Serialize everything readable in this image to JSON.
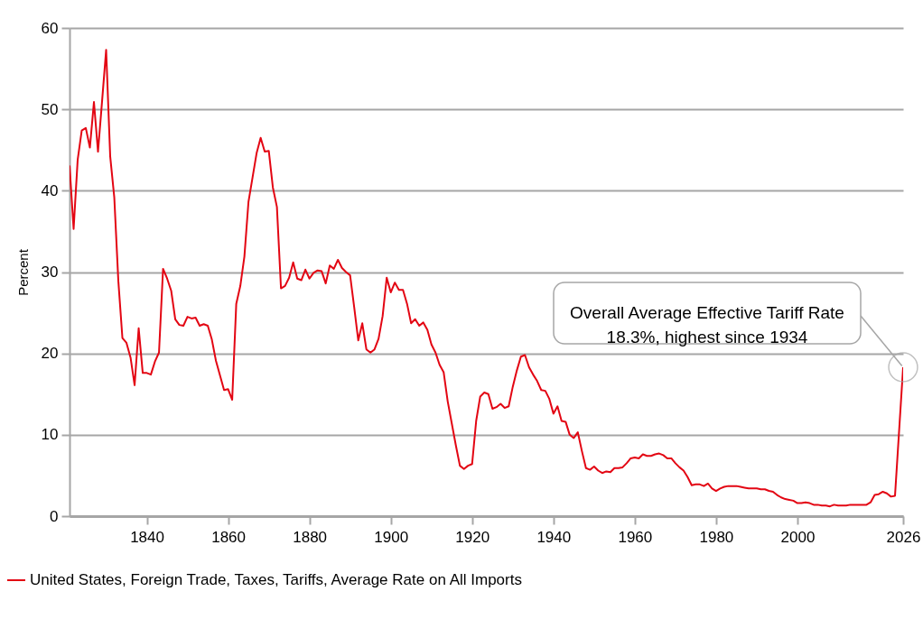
{
  "chart_data": {
    "type": "line",
    "ylabel": "Percent",
    "x": [
      1821,
      1822,
      1823,
      1824,
      1825,
      1826,
      1827,
      1828,
      1829,
      1830,
      1831,
      1832,
      1833,
      1834,
      1835,
      1836,
      1837,
      1838,
      1839,
      1840,
      1841,
      1842,
      1843,
      1844,
      1845,
      1846,
      1847,
      1848,
      1849,
      1850,
      1851,
      1852,
      1853,
      1854,
      1855,
      1856,
      1857,
      1858,
      1859,
      1860,
      1861,
      1862,
      1863,
      1864,
      1865,
      1866,
      1867,
      1868,
      1869,
      1870,
      1871,
      1872,
      1873,
      1874,
      1875,
      1876,
      1877,
      1878,
      1879,
      1880,
      1881,
      1882,
      1883,
      1884,
      1885,
      1886,
      1887,
      1888,
      1889,
      1890,
      1891,
      1892,
      1893,
      1894,
      1895,
      1896,
      1897,
      1898,
      1899,
      1900,
      1901,
      1902,
      1903,
      1904,
      1905,
      1906,
      1907,
      1908,
      1909,
      1910,
      1911,
      1912,
      1913,
      1914,
      1915,
      1916,
      1917,
      1918,
      1919,
      1920,
      1921,
      1922,
      1923,
      1924,
      1925,
      1926,
      1927,
      1928,
      1929,
      1930,
      1931,
      1932,
      1933,
      1934,
      1935,
      1936,
      1937,
      1938,
      1939,
      1940,
      1941,
      1942,
      1943,
      1944,
      1945,
      1946,
      1947,
      1948,
      1949,
      1950,
      1951,
      1952,
      1953,
      1954,
      1955,
      1956,
      1957,
      1958,
      1959,
      1960,
      1961,
      1962,
      1963,
      1964,
      1965,
      1966,
      1967,
      1968,
      1969,
      1970,
      1971,
      1972,
      1973,
      1974,
      1975,
      1976,
      1977,
      1978,
      1979,
      1980,
      1981,
      1982,
      1983,
      1984,
      1985,
      1986,
      1987,
      1988,
      1989,
      1990,
      1991,
      1992,
      1993,
      1994,
      1995,
      1996,
      1997,
      1998,
      1999,
      2000,
      2001,
      2002,
      2003,
      2004,
      2005,
      2006,
      2007,
      2008,
      2009,
      2010,
      2011,
      2012,
      2013,
      2014,
      2015,
      2016,
      2017,
      2018,
      2019,
      2020,
      2021,
      2022,
      2023,
      2024,
      2026
    ],
    "series": [
      {
        "name": "United States, Foreign Trade, Taxes, Tariffs, Average Rate on All Imports",
        "color": "#e30613",
        "values": [
          43.1,
          35.3,
          43.8,
          47.4,
          47.7,
          45.3,
          50.9,
          44.8,
          51.0,
          57.3,
          44.2,
          39.2,
          28.9,
          21.9,
          21.3,
          19.5,
          16.1,
          23.1,
          17.6,
          17.6,
          17.4,
          19.0,
          20.1,
          30.4,
          29.2,
          27.7,
          24.2,
          23.5,
          23.4,
          24.5,
          24.3,
          24.4,
          23.4,
          23.6,
          23.4,
          21.7,
          19.1,
          17.3,
          15.5,
          15.6,
          14.3,
          26.1,
          28.3,
          31.9,
          38.6,
          41.6,
          44.6,
          46.5,
          44.8,
          44.9,
          40.4,
          38.0,
          28.0,
          28.3,
          29.3,
          31.2,
          29.2,
          29.0,
          30.3,
          29.2,
          29.9,
          30.2,
          30.1,
          28.6,
          30.8,
          30.4,
          31.5,
          30.5,
          30.0,
          29.6,
          25.7,
          21.6,
          23.7,
          20.5,
          20.1,
          20.5,
          21.8,
          24.6,
          29.3,
          27.5,
          28.7,
          27.8,
          27.8,
          26.1,
          23.7,
          24.2,
          23.4,
          23.8,
          22.9,
          21.1,
          20.1,
          18.6,
          17.7,
          14.1,
          11.4,
          8.7,
          6.2,
          5.8,
          6.2,
          6.4,
          11.7,
          14.7,
          15.2,
          15.0,
          13.2,
          13.4,
          13.8,
          13.3,
          13.5,
          15.9,
          17.9,
          19.6,
          19.8,
          18.3,
          17.4,
          16.6,
          15.5,
          15.4,
          14.4,
          12.6,
          13.5,
          11.7,
          11.6,
          10.0,
          9.6,
          10.3,
          8.0,
          5.9,
          5.7,
          6.1,
          5.6,
          5.3,
          5.5,
          5.4,
          5.9,
          5.9,
          6.0,
          6.5,
          7.1,
          7.2,
          7.1,
          7.6,
          7.4,
          7.4,
          7.6,
          7.7,
          7.5,
          7.1,
          7.1,
          6.5,
          6.0,
          5.6,
          4.8,
          3.8,
          3.9,
          3.9,
          3.7,
          4.0,
          3.4,
          3.1,
          3.4,
          3.6,
          3.7,
          3.7,
          3.7,
          3.6,
          3.5,
          3.4,
          3.4,
          3.4,
          3.3,
          3.3,
          3.1,
          3.0,
          2.6,
          2.3,
          2.1,
          2.0,
          1.9,
          1.6,
          1.6,
          1.7,
          1.6,
          1.4,
          1.4,
          1.3,
          1.3,
          1.2,
          1.4,
          1.3,
          1.3,
          1.3,
          1.4,
          1.4,
          1.4,
          1.4,
          1.4,
          1.7,
          2.6,
          2.7,
          3.0,
          2.8,
          2.4,
          2.5,
          18.3
        ]
      }
    ],
    "xlim": [
      1821,
      2026
    ],
    "xticks": [
      1840,
      1860,
      1880,
      1900,
      1920,
      1940,
      1960,
      1980,
      2000,
      2026
    ],
    "ylim": [
      0,
      60
    ],
    "yticks": [
      0,
      10,
      20,
      30,
      40,
      50,
      60
    ],
    "grid": "y",
    "legend": "bottom left",
    "annotations": [
      {
        "text": "Overall Average Effective Tariff Rate\n18.3%, highest since 1934",
        "x": 2026,
        "y": 18.3
      }
    ]
  }
}
